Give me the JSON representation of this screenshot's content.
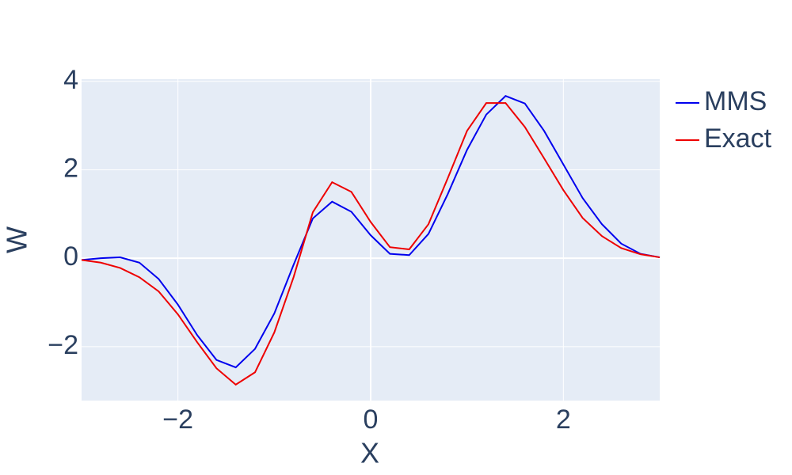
{
  "chart_data": {
    "type": "line",
    "x_label": "X",
    "y_label": "W",
    "x": [
      -3,
      -2.8,
      -2.6,
      -2.4,
      -2.2,
      -2,
      -1.8,
      -1.6,
      -1.4,
      -1.2,
      -1,
      -0.8,
      -0.6,
      -0.4,
      -0.2,
      0,
      0.2,
      0.4,
      0.6,
      0.8,
      1,
      1.2,
      1.4,
      1.6,
      1.8,
      2,
      2.2,
      2.4,
      2.6,
      2.8,
      3
    ],
    "series": [
      {
        "name": "MMS",
        "color": "#0000ee",
        "values": [
          -0.04,
          0,
          0.02,
          -0.1,
          -0.47,
          -1.05,
          -1.74,
          -2.3,
          -2.47,
          -2.05,
          -1.25,
          -0.15,
          0.9,
          1.28,
          1.05,
          0.52,
          0.1,
          0.07,
          0.55,
          1.45,
          2.45,
          3.25,
          3.67,
          3.5,
          2.88,
          2.12,
          1.36,
          0.77,
          0.33,
          0.1,
          0.02
        ]
      },
      {
        "name": "Exact",
        "color": "#ee0000",
        "values": [
          -0.04,
          -0.1,
          -0.22,
          -0.43,
          -0.75,
          -1.27,
          -1.9,
          -2.49,
          -2.86,
          -2.58,
          -1.68,
          -0.43,
          1.04,
          1.72,
          1.5,
          0.82,
          0.25,
          0.2,
          0.77,
          1.81,
          2.88,
          3.51,
          3.51,
          2.97,
          2.26,
          1.54,
          0.91,
          0.5,
          0.23,
          0.09,
          0.02
        ]
      }
    ],
    "xlim": [
      -3,
      3
    ],
    "ylim": [
      -3.22,
      4.05
    ],
    "xticks": [
      {
        "value": -2,
        "label": "−2"
      },
      0,
      2
    ],
    "yticks": [
      {
        "value": -2,
        "label": "−2"
      },
      0,
      2,
      4
    ],
    "grid": true,
    "legend": "right"
  }
}
